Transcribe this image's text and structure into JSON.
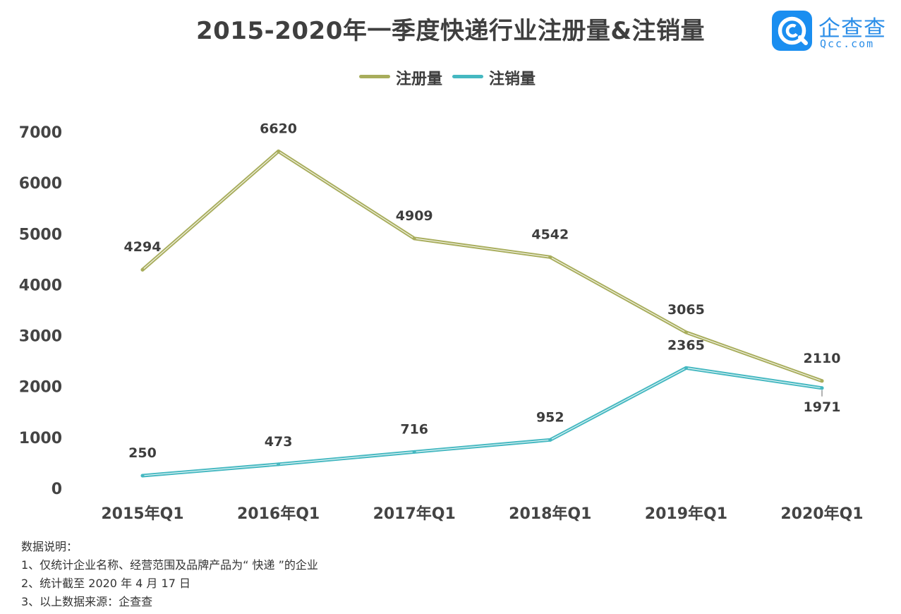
{
  "header": {
    "title": "2015-2020年一季度快递行业注册量&注销量"
  },
  "logo": {
    "name": "企查查",
    "domain": "Qcc.com",
    "brand_color": "#1a8ef0"
  },
  "chart_data": {
    "type": "line",
    "title": "2015-2020年一季度快递行业注册量&注销量",
    "categories": [
      "2015年Q1",
      "2016年Q1",
      "2017年Q1",
      "2018年Q1",
      "2019年Q1",
      "2020年Q1"
    ],
    "series": [
      {
        "name": "注册量",
        "values": [
          4294,
          6620,
          4909,
          4542,
          3065,
          2110
        ],
        "color": "#a8ad5c"
      },
      {
        "name": "注销量",
        "values": [
          250,
          473,
          716,
          952,
          2365,
          1971
        ],
        "color": "#45b8c1"
      }
    ],
    "yticks": [
      "0",
      "1000",
      "2000",
      "3000",
      "4000",
      "5000",
      "6000",
      "7000"
    ],
    "ylim": [
      0,
      7000
    ],
    "xlabel": "",
    "ylabel": "",
    "grid": false,
    "legend": "top-center"
  },
  "notes": {
    "heading": "数据说明：",
    "items": [
      "1、仅统计企业名称、经营范围及品牌产品为“ 快递 ”的企业",
      "2、统计截至 2020 年 4 月 17 日",
      "3、以上数据来源：企查查"
    ]
  }
}
